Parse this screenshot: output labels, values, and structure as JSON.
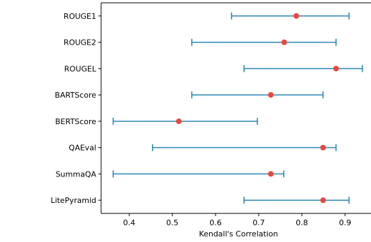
{
  "chart_data": {
    "type": "errorbar",
    "xlabel": "Kendall's Correlation",
    "ylabel": "",
    "xlim": [
      0.335,
      0.96
    ],
    "xticks": [
      "0.4",
      "0.5",
      "0.6",
      "0.7",
      "0.8",
      "0.9"
    ],
    "xtick_values": [
      0.4,
      0.5,
      0.6,
      0.7,
      0.8,
      0.9
    ],
    "categories": [
      "ROUGE1",
      "ROUGE2",
      "ROUGEL",
      "BARTScore",
      "BERTScore",
      "QAEval",
      "SummaQA",
      "LitePyramid"
    ],
    "points": [
      0.787,
      0.759,
      0.879,
      0.728,
      0.515,
      0.849,
      0.728,
      0.849
    ],
    "lower": [
      0.637,
      0.545,
      0.666,
      0.545,
      0.363,
      0.454,
      0.363,
      0.666
    ],
    "upper": [
      0.909,
      0.879,
      0.94,
      0.849,
      0.697,
      0.879,
      0.758,
      0.909
    ],
    "colors": {
      "errorbar": "#2a87b5",
      "point": "#e8473a",
      "axis": "#000000"
    },
    "grid": false
  }
}
